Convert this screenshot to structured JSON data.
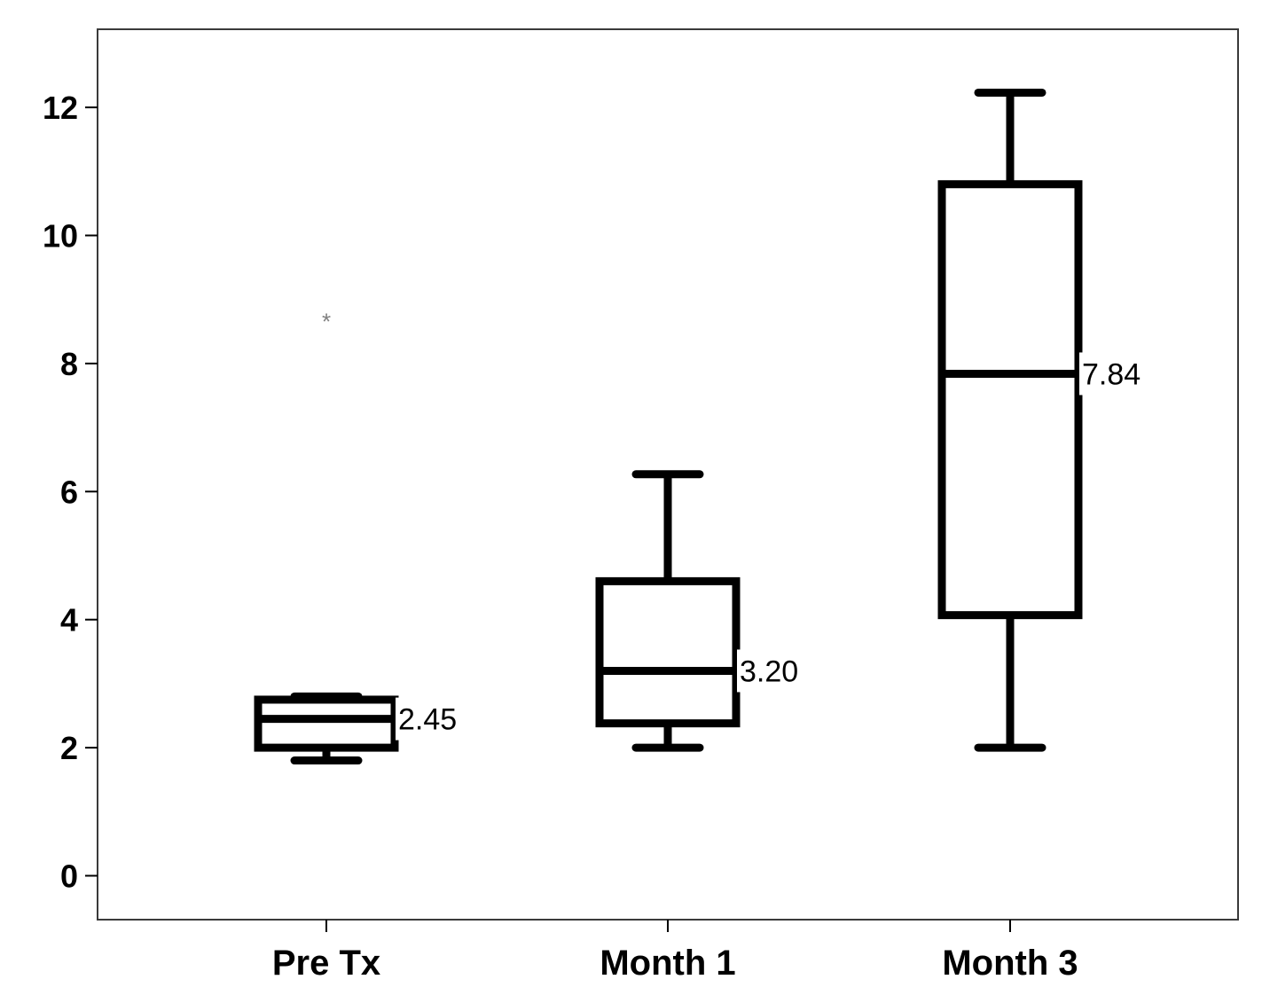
{
  "chart_data": {
    "type": "box",
    "title": "",
    "xlabel": "",
    "ylabel": "",
    "ylim": [
      -0.7,
      13.2
    ],
    "yticks": [
      0,
      2,
      4,
      6,
      8,
      10,
      12
    ],
    "grid": false,
    "legend": "none",
    "categories": [
      "Pre Tx",
      "Month 1",
      "Month 3"
    ],
    "boxes": [
      {
        "category": "Pre Tx",
        "whisker_low": 1.8,
        "q1": 2.0,
        "median": 2.45,
        "q3": 2.75,
        "whisker_high": 2.8,
        "median_label": "2.45",
        "outliers": [
          8.7
        ]
      },
      {
        "category": "Month 1",
        "whisker_low": 2.0,
        "q1": 2.38,
        "median": 3.2,
        "q3": 4.6,
        "whisker_high": 6.27,
        "median_label": "3.20",
        "outliers": []
      },
      {
        "category": "Month 3",
        "whisker_low": 2.0,
        "q1": 4.07,
        "median": 7.84,
        "q3": 10.8,
        "whisker_high": 12.23,
        "median_label": "7.84",
        "outliers": []
      }
    ],
    "colors": {
      "stroke": "#000000",
      "outlier": "#808080",
      "frame": "#3a3a3a"
    }
  }
}
